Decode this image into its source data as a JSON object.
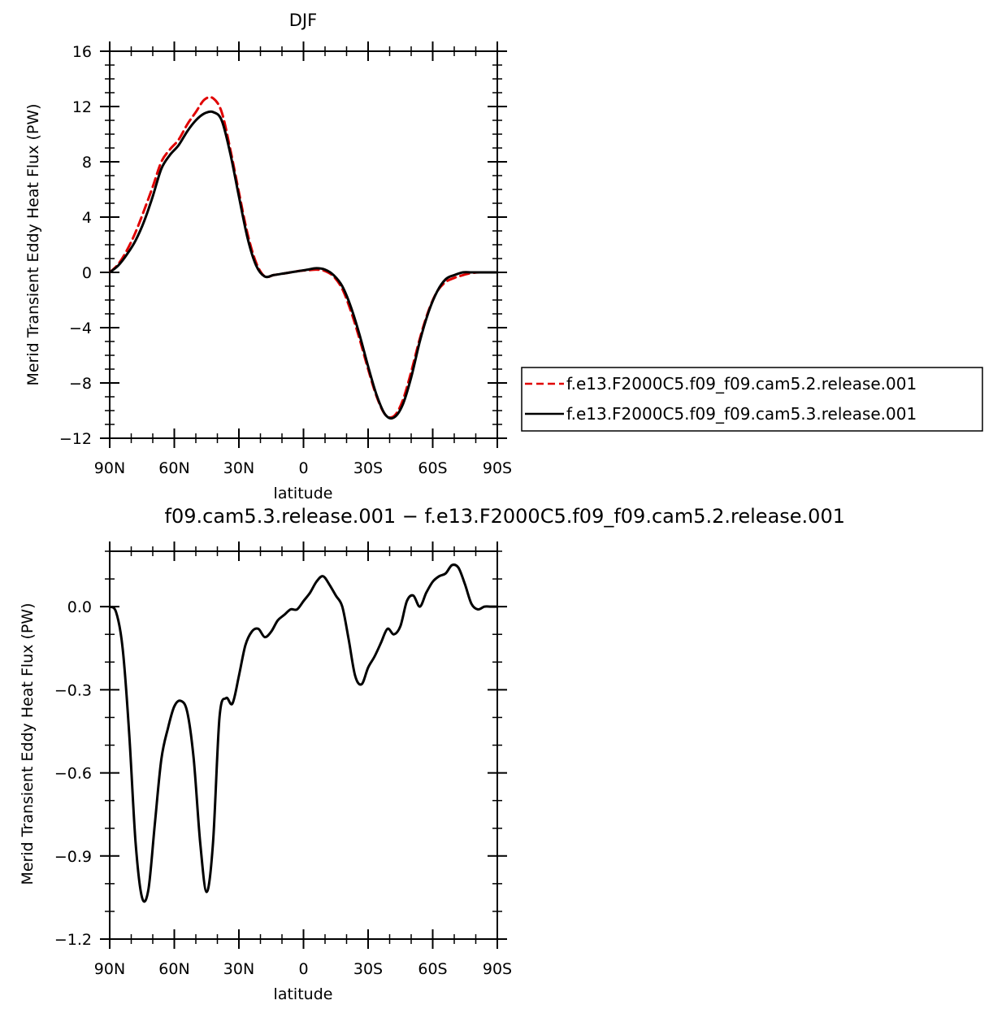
{
  "chart_data": [
    {
      "type": "line",
      "title": "DJF",
      "xlabel": "latitude",
      "ylabel": "Merid Transient Eddy Heat Flux (PW)",
      "ylim": [
        -12,
        16
      ],
      "yticks": [
        "16",
        "12",
        "8",
        "4",
        "0",
        "−4",
        "−8",
        "−12"
      ],
      "ytick_values": [
        16,
        12,
        8,
        4,
        0,
        -4,
        -8,
        -12
      ],
      "xlim": [
        90,
        -90
      ],
      "xticks": [
        "90N",
        "60N",
        "30N",
        "0",
        "30S",
        "60S",
        "90S"
      ],
      "xtick_values": [
        90,
        60,
        30,
        0,
        -30,
        -60,
        -90
      ],
      "legend_position": "right",
      "series": [
        {
          "name": "f.e13.F2000C5.f09_f09.cam5.2.release.001",
          "color": "#e00000",
          "style": "dashed",
          "x": [
            90,
            86,
            82,
            78,
            74,
            70,
            66,
            62,
            58,
            54,
            50,
            46,
            42,
            38,
            34,
            30,
            26,
            22,
            18,
            14,
            10,
            6,
            2,
            -2,
            -6,
            -10,
            -14,
            -18,
            -22,
            -26,
            -30,
            -34,
            -38,
            -42,
            -46,
            -50,
            -54,
            -58,
            -62,
            -66,
            -70,
            -74,
            -78,
            -82,
            -86,
            -90
          ],
          "y": [
            0,
            0.6,
            1.6,
            2.9,
            4.5,
            6.2,
            8.0,
            8.9,
            9.6,
            10.7,
            11.6,
            12.5,
            12.6,
            11.6,
            8.9,
            5.8,
            2.8,
            0.7,
            -0.3,
            -0.2,
            -0.1,
            0.0,
            0.1,
            0.15,
            0.2,
            0.1,
            -0.3,
            -1.2,
            -2.8,
            -4.8,
            -7.0,
            -9.0,
            -10.3,
            -10.4,
            -9.3,
            -7.2,
            -4.8,
            -2.8,
            -1.4,
            -0.7,
            -0.4,
            -0.2,
            -0.05,
            0,
            0,
            0
          ]
        },
        {
          "name": "f.e13.F2000C5.f09_f09.cam5.3.release.001",
          "color": "#000000",
          "style": "solid",
          "x": [
            90,
            86,
            82,
            78,
            74,
            70,
            66,
            62,
            58,
            54,
            50,
            46,
            42,
            38,
            34,
            30,
            26,
            22,
            18,
            14,
            10,
            6,
            2,
            -2,
            -6,
            -10,
            -14,
            -18,
            -22,
            -26,
            -30,
            -34,
            -38,
            -42,
            -46,
            -50,
            -54,
            -58,
            -62,
            -66,
            -70,
            -74,
            -78,
            -82,
            -86,
            -90
          ],
          "y": [
            0,
            0.5,
            1.3,
            2.3,
            3.7,
            5.5,
            7.5,
            8.5,
            9.2,
            10.2,
            11.0,
            11.5,
            11.6,
            11.0,
            8.6,
            5.5,
            2.5,
            0.5,
            -0.3,
            -0.2,
            -0.1,
            0.0,
            0.1,
            0.2,
            0.3,
            0.2,
            -0.2,
            -1.0,
            -2.5,
            -4.5,
            -6.8,
            -8.9,
            -10.3,
            -10.5,
            -9.6,
            -7.6,
            -5.0,
            -2.9,
            -1.4,
            -0.5,
            -0.2,
            0,
            0,
            0,
            0,
            0
          ]
        }
      ]
    },
    {
      "type": "line",
      "title": "f09.cam5.3.release.001 − f.e13.F2000C5.f09_f09.cam5.2.release.001",
      "xlabel": "latitude",
      "ylabel": "Merid Transient Eddy Heat Flux (PW)",
      "ylim": [
        -1.2,
        0.2
      ],
      "yticks": [
        "0.0",
        "−0.3",
        "−0.6",
        "−0.9",
        "−1.2"
      ],
      "ytick_values": [
        0.0,
        -0.3,
        -0.6,
        -0.9,
        -1.2
      ],
      "xlim": [
        90,
        -90
      ],
      "xticks": [
        "90N",
        "60N",
        "30N",
        "0",
        "30S",
        "60S",
        "90S"
      ],
      "xtick_values": [
        90,
        60,
        30,
        0,
        -30,
        -60,
        -90
      ],
      "series": [
        {
          "name": "",
          "color": "#000000",
          "style": "solid",
          "x": [
            90,
            87,
            84,
            81,
            78,
            75,
            72,
            69,
            66,
            63,
            60,
            57,
            54,
            51,
            48,
            45,
            42,
            39,
            36,
            33,
            30,
            27,
            24,
            21,
            18,
            15,
            12,
            9,
            6,
            3,
            0,
            -3,
            -6,
            -9,
            -12,
            -15,
            -18,
            -21,
            -24,
            -27,
            -30,
            -33,
            -36,
            -39,
            -42,
            -45,
            -48,
            -51,
            -54,
            -57,
            -60,
            -63,
            -66,
            -69,
            -72,
            -75,
            -78,
            -81,
            -84,
            -87,
            -90
          ],
          "y": [
            0.0,
            -0.02,
            -0.15,
            -0.45,
            -0.85,
            -1.05,
            -1.02,
            -0.78,
            -0.55,
            -0.44,
            -0.36,
            -0.34,
            -0.38,
            -0.55,
            -0.85,
            -1.03,
            -0.85,
            -0.4,
            -0.33,
            -0.35,
            -0.25,
            -0.14,
            -0.09,
            -0.08,
            -0.11,
            -0.09,
            -0.05,
            -0.03,
            -0.01,
            -0.01,
            0.02,
            0.05,
            0.09,
            0.11,
            0.08,
            0.04,
            0.0,
            -0.12,
            -0.25,
            -0.28,
            -0.22,
            -0.18,
            -0.13,
            -0.08,
            -0.1,
            -0.07,
            0.02,
            0.04,
            0.0,
            0.05,
            0.09,
            0.11,
            0.12,
            0.15,
            0.14,
            0.08,
            0.01,
            -0.01,
            0.0,
            0.0,
            0.0
          ]
        }
      ]
    }
  ]
}
